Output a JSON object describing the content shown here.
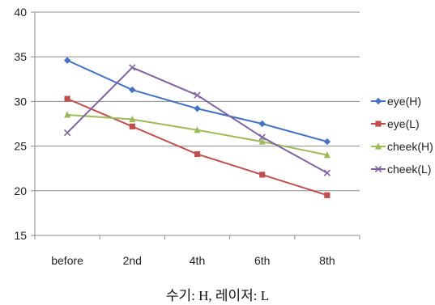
{
  "chart_data": {
    "type": "line",
    "categories": [
      "before",
      "2nd",
      "4th",
      "6th",
      "8th"
    ],
    "ylim": [
      15,
      40
    ],
    "yticks": [
      15,
      20,
      25,
      30,
      35,
      40
    ],
    "grid": "horizontal",
    "legend_position": "right",
    "series": [
      {
        "name": "eye(H)",
        "values": [
          34.6,
          31.3,
          29.2,
          27.5,
          25.5
        ],
        "color": "#4472C4",
        "marker": "diamond"
      },
      {
        "name": "eye(L)",
        "values": [
          30.3,
          27.2,
          24.1,
          21.8,
          19.5
        ],
        "color": "#C0504D",
        "marker": "square"
      },
      {
        "name": "cheek(H)",
        "values": [
          28.5,
          28.0,
          26.8,
          25.5,
          24.0
        ],
        "color": "#9BBB59",
        "marker": "triangle"
      },
      {
        "name": "cheek(L)",
        "values": [
          26.5,
          33.8,
          30.7,
          26.0,
          22.0
        ],
        "color": "#8064A2",
        "marker": "x"
      }
    ]
  },
  "caption": "수기: H, 레이저: L"
}
